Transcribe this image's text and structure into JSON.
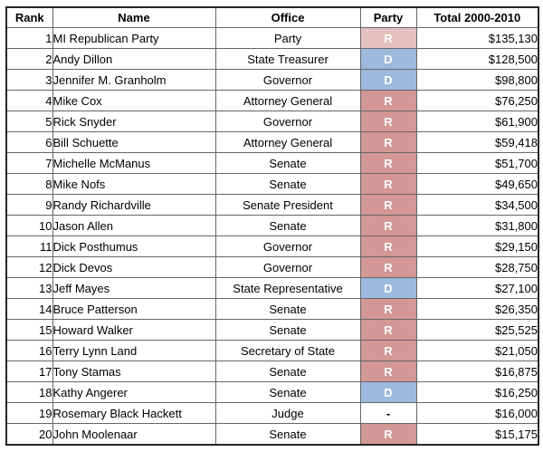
{
  "chart_data": {
    "type": "table",
    "columns": [
      "Rank",
      "Name",
      "Office",
      "Party",
      "Total 2000-2010"
    ],
    "rows": [
      {
        "rank": "1",
        "name": "MI Republican Party",
        "office": "Party",
        "party": "R",
        "party_style": "rep_light",
        "total": "$135,130"
      },
      {
        "rank": "2",
        "name": "Andy Dillon",
        "office": "State Treasurer",
        "party": "D",
        "party_style": "dem",
        "total": "$128,500"
      },
      {
        "rank": "3",
        "name": "Jennifer M. Granholm",
        "office": "Governor",
        "party": "D",
        "party_style": "dem",
        "total": "$98,800"
      },
      {
        "rank": "4",
        "name": "Mike Cox",
        "office": "Attorney General",
        "party": "R",
        "party_style": "rep",
        "total": "$76,250"
      },
      {
        "rank": "5",
        "name": "Rick Snyder",
        "office": "Governor",
        "party": "R",
        "party_style": "rep",
        "total": "$61,900"
      },
      {
        "rank": "6",
        "name": "Bill Schuette",
        "office": "Attorney General",
        "party": "R",
        "party_style": "rep",
        "total": "$59,418"
      },
      {
        "rank": "7",
        "name": "Michelle McManus",
        "office": "Senate",
        "party": "R",
        "party_style": "rep",
        "total": "$51,700"
      },
      {
        "rank": "8",
        "name": "Mike Nofs",
        "office": "Senate",
        "party": "R",
        "party_style": "rep",
        "total": "$49,650"
      },
      {
        "rank": "9",
        "name": "Randy Richardville",
        "office": "Senate President",
        "party": "R",
        "party_style": "rep",
        "total": "$34,500"
      },
      {
        "rank": "10",
        "name": "Jason Allen",
        "office": "Senate",
        "party": "R",
        "party_style": "rep",
        "total": "$31,800"
      },
      {
        "rank": "11",
        "name": "Dick Posthumus",
        "office": "Governor",
        "party": "R",
        "party_style": "rep",
        "total": "$29,150"
      },
      {
        "rank": "12",
        "name": "Dick Devos",
        "office": "Governor",
        "party": "R",
        "party_style": "rep",
        "total": "$28,750"
      },
      {
        "rank": "13",
        "name": "Jeff Mayes",
        "office": "State Representative",
        "party": "D",
        "party_style": "dem",
        "total": "$27,100"
      },
      {
        "rank": "14",
        "name": "Bruce Patterson",
        "office": "Senate",
        "party": "R",
        "party_style": "rep",
        "total": "$26,350"
      },
      {
        "rank": "15",
        "name": "Howard Walker",
        "office": "Senate",
        "party": "R",
        "party_style": "rep",
        "total": "$25,525"
      },
      {
        "rank": "16",
        "name": "Terry Lynn Land",
        "office": "Secretary of State",
        "party": "R",
        "party_style": "rep",
        "total": "$21,050"
      },
      {
        "rank": "17",
        "name": "Tony Stamas",
        "office": "Senate",
        "party": "R",
        "party_style": "rep",
        "total": "$16,875"
      },
      {
        "rank": "18",
        "name": "Kathy Angerer",
        "office": "Senate",
        "party": "D",
        "party_style": "dem",
        "total": "$16,250"
      },
      {
        "rank": "19",
        "name": "Rosemary Black Hackett",
        "office": "Judge",
        "party": "-",
        "party_style": "none",
        "total": "$16,000"
      },
      {
        "rank": "20",
        "name": "John Moolenaar",
        "office": "Senate",
        "party": "R",
        "party_style": "rep",
        "total": "$15,175"
      }
    ]
  },
  "colors": {
    "rep": "#D39795",
    "rep_light": "#E5C1C0",
    "dem": "#9DB9DC",
    "none": "#FFFFFF",
    "party_text": "#FFFFFF",
    "dash_text": "#000000"
  }
}
